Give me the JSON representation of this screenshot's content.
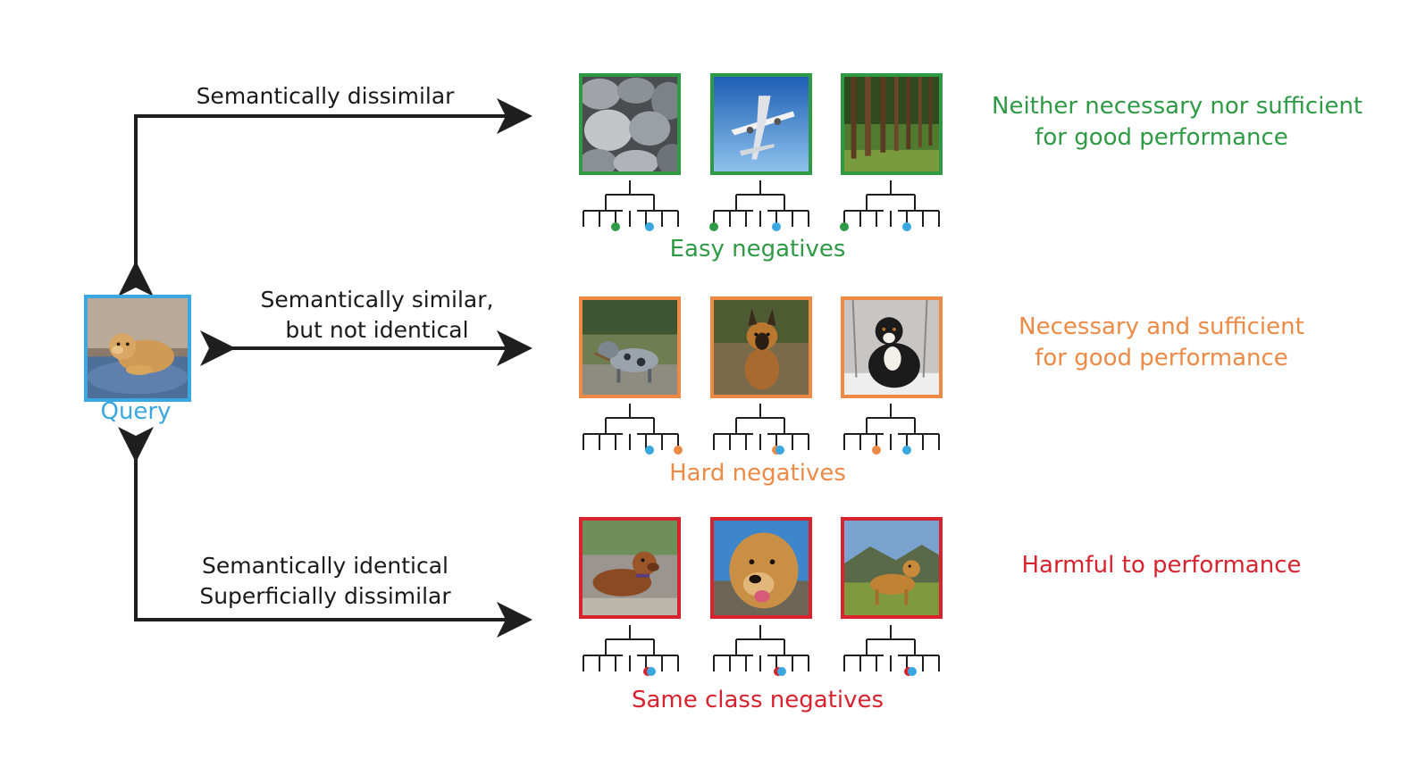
{
  "colors": {
    "query": "#3aa7e0",
    "easy": "#2f9a45",
    "hard": "#ec8a46",
    "same": "#d8232f",
    "arrow": "#1f1f1f"
  },
  "query": {
    "label": "Query",
    "image_icon": "golden-puppy-on-bed-photo"
  },
  "arrows": {
    "top_label": "Semantically dissimilar",
    "middle_label_line1": "Semantically similar,",
    "middle_label_line2": "but not identical",
    "bottom_label_line1": "Semantically identical",
    "bottom_label_line2": "Superficially dissimilar"
  },
  "rows": {
    "easy": {
      "group_label": "Easy negatives",
      "description_line1": "Neither necessary nor sufficient",
      "description_line2": "for good performance",
      "images": [
        "pebbles-photo",
        "airplane-photo",
        "forest-photo"
      ]
    },
    "hard": {
      "group_label": "Hard negatives",
      "description_line1": "Necessary and sufficient",
      "description_line2": "for good performance",
      "images": [
        "merle-dog-in-puddle-photo",
        "german-shepherd-photo",
        "bernese-dog-in-snow-photo"
      ]
    },
    "same": {
      "group_label": "Same class negatives",
      "description_line1": "Harmful to performance",
      "images": [
        "red-retriever-lying-photo",
        "golden-retriever-closeup-photo",
        "golden-retriever-on-hill-photo"
      ]
    }
  }
}
